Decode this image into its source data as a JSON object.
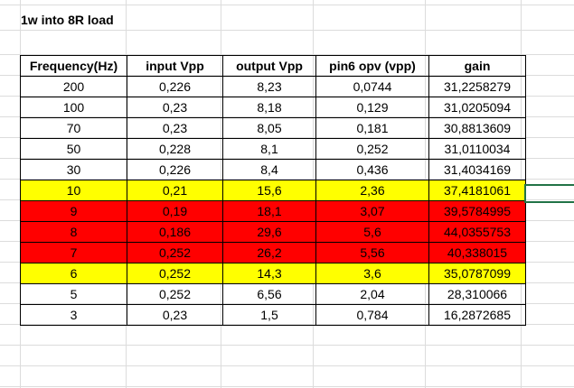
{
  "sheet": {
    "title": "1w into 8R load"
  },
  "table": {
    "headers": [
      "Frequency(Hz)",
      "input Vpp",
      "output Vpp",
      "pin6 opv (vpp)",
      "gain"
    ],
    "rows": [
      {
        "cells": [
          "200",
          "0,226",
          "8,23",
          "0,0744",
          "31,2258279"
        ],
        "highlight": "none"
      },
      {
        "cells": [
          "100",
          "0,23",
          "8,18",
          "0,129",
          "31,0205094"
        ],
        "highlight": "none"
      },
      {
        "cells": [
          "70",
          "0,23",
          "8,05",
          "0,181",
          "30,8813609"
        ],
        "highlight": "none"
      },
      {
        "cells": [
          "50",
          "0,228",
          "8,1",
          "0,252",
          "31,0110034"
        ],
        "highlight": "none"
      },
      {
        "cells": [
          "30",
          "0,226",
          "8,4",
          "0,436",
          "31,4034169"
        ],
        "highlight": "none"
      },
      {
        "cells": [
          "10",
          "0,21",
          "15,6",
          "2,36",
          "37,4181061"
        ],
        "highlight": "yellow"
      },
      {
        "cells": [
          "9",
          "0,19",
          "18,1",
          "3,07",
          "39,5784995"
        ],
        "highlight": "red"
      },
      {
        "cells": [
          "8",
          "0,186",
          "29,6",
          "5,6",
          "44,0355753"
        ],
        "highlight": "red"
      },
      {
        "cells": [
          "7",
          "0,252",
          "26,2",
          "5,56",
          "40,338015"
        ],
        "highlight": "red"
      },
      {
        "cells": [
          "6",
          "0,252",
          "14,3",
          "3,6",
          "35,0787099"
        ],
        "highlight": "yellow"
      },
      {
        "cells": [
          "5",
          "0,252",
          "6,56",
          "2,04",
          "28,310066"
        ],
        "highlight": "none"
      },
      {
        "cells": [
          "3",
          "0,23",
          "1,5",
          "0,784",
          "16,2872685"
        ],
        "highlight": "none"
      }
    ]
  },
  "colors": {
    "yellow": "#ffff00",
    "red": "#ff0000",
    "selection": "#217346"
  }
}
